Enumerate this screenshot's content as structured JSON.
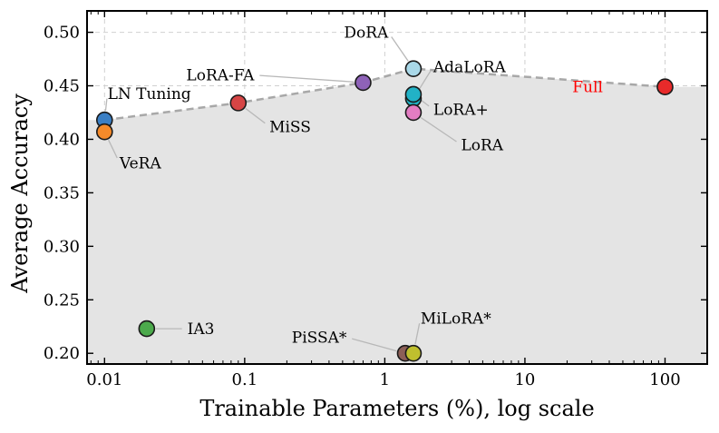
{
  "chart_data": {
    "type": "scatter",
    "title": "",
    "xlabel": "Trainable Parameters (%), log scale",
    "ylabel": "Average Accuracy",
    "x_scale": "log",
    "xlim": [
      0.0075,
      200
    ],
    "ylim": [
      0.19,
      0.52
    ],
    "grid": true,
    "x_ticks": [
      {
        "value": 0.01,
        "label": "0.01"
      },
      {
        "value": 0.1,
        "label": "0.1"
      },
      {
        "value": 1,
        "label": "1"
      },
      {
        "value": 10,
        "label": "10"
      },
      {
        "value": 100,
        "label": "100"
      }
    ],
    "y_ticks": [
      {
        "value": 0.2,
        "label": "0.20"
      },
      {
        "value": 0.25,
        "label": "0.25"
      },
      {
        "value": 0.3,
        "label": "0.30"
      },
      {
        "value": 0.35,
        "label": "0.35"
      },
      {
        "value": 0.4,
        "label": "0.40"
      },
      {
        "value": 0.45,
        "label": "0.45"
      },
      {
        "value": 0.5,
        "label": "0.50"
      }
    ],
    "pareto_front": [
      [
        0.01,
        0.418
      ],
      [
        0.09,
        0.434
      ],
      [
        0.7,
        0.453
      ],
      [
        1.6,
        0.466
      ],
      [
        100,
        0.449
      ]
    ],
    "points": [
      {
        "label": "LN Tuning",
        "x": 0.01,
        "y": 0.418,
        "color": "#3b7fc4",
        "text_color": "#000000",
        "label_pos": [
          0.0105,
          0.443
        ]
      },
      {
        "label": "VeRA",
        "x": 0.01,
        "y": 0.407,
        "color": "#f58a2a",
        "text_color": "#000000",
        "label_pos": [
          0.0128,
          0.378
        ]
      },
      {
        "label": "MiSS",
        "x": 0.09,
        "y": 0.434,
        "color": "#d64545",
        "text_color": "#000000",
        "label_pos": [
          0.15,
          0.412
        ]
      },
      {
        "label": "LoRA-FA",
        "x": 0.7,
        "y": 0.453,
        "color": "#8e62b8",
        "text_color": "#000000",
        "label_pos": [
          0.117,
          0.46
        ]
      },
      {
        "label": "DoRA",
        "x": 1.6,
        "y": 0.466,
        "color": "#a9d8e8",
        "text_color": "#000000",
        "label_pos": [
          1.06,
          0.5
        ]
      },
      {
        "label": "AdaLoRA",
        "x": 1.6,
        "y": 0.438,
        "color": "#1fb3c4",
        "text_color": "#000000",
        "label_pos": [
          2.22,
          0.468
        ]
      },
      {
        "label": "LoRA+",
        "x": 1.6,
        "y": 0.442,
        "color": "#22b2c6",
        "text_color": "#000000",
        "label_pos": [
          2.22,
          0.428
        ]
      },
      {
        "label": "LoRA",
        "x": 1.6,
        "y": 0.425,
        "color": "#e37dc2",
        "text_color": "#000000",
        "label_pos": [
          3.5,
          0.395
        ]
      },
      {
        "label": "Full",
        "x": 100,
        "y": 0.449,
        "color": "#e82a2a",
        "text_color": "#ff0000",
        "label_pos": [
          36,
          0.449
        ]
      },
      {
        "label": "IA3",
        "x": 0.02,
        "y": 0.223,
        "color": "#4caa4c",
        "text_color": "#000000",
        "label_pos": [
          0.039,
          0.223
        ]
      },
      {
        "label": "PiSSA*",
        "x": 1.4,
        "y": 0.2,
        "color": "#8c5f57",
        "text_color": "#000000",
        "label_pos": [
          0.535,
          0.215
        ]
      },
      {
        "label": "MiLoRA*",
        "x": 1.6,
        "y": 0.2,
        "color": "#bfbf2e",
        "text_color": "#000000",
        "label_pos": [
          1.8,
          0.233
        ]
      }
    ]
  }
}
